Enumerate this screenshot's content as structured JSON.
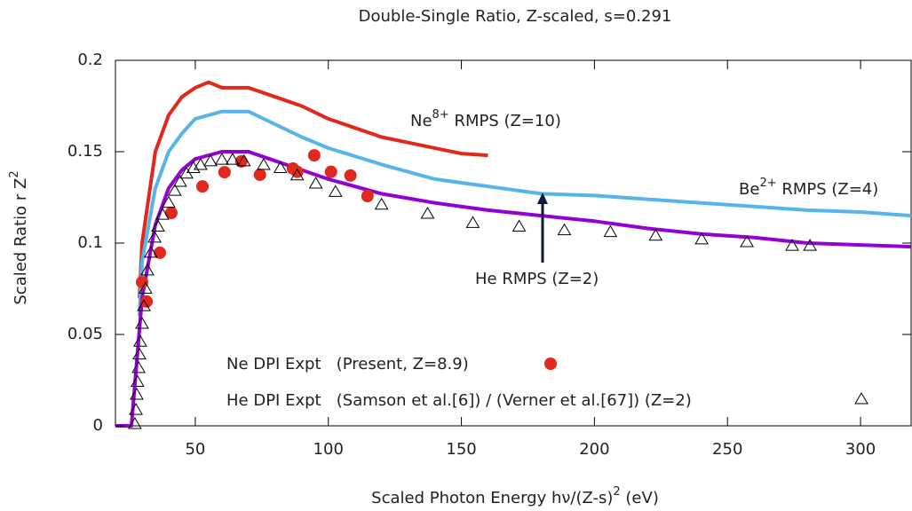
{
  "chart_data": {
    "type": "line",
    "title": "Double-Single Ratio, Z-scaled, s=0.291",
    "xlabel": {
      "text": "Scaled Photon Energy hν/(Z-s)",
      "sup": "2",
      "rest": " (eV)"
    },
    "ylabel": {
      "text": "Scaled Ratio  r Z",
      "sup": "2"
    },
    "xlim": [
      20,
      319
    ],
    "ylim": [
      0,
      0.2
    ],
    "xticks": [
      50,
      100,
      150,
      200,
      250,
      300
    ],
    "yticks": [
      0,
      0.05,
      0.1,
      0.15,
      0.2
    ],
    "series": [
      {
        "name": {
          "text": "Ne",
          "sup": "8+",
          "rest": " RMPS (Z=10)"
        },
        "style": "line",
        "color": "#e0281c",
        "x": [
          29,
          30,
          35,
          40,
          45,
          50,
          55,
          60,
          70,
          80,
          90,
          100,
          110,
          120,
          130,
          140,
          150,
          160
        ],
        "values": [
          0.07,
          0.1,
          0.15,
          0.17,
          0.18,
          0.185,
          0.188,
          0.185,
          0.185,
          0.18,
          0.175,
          0.168,
          0.163,
          0.158,
          0.155,
          0.152,
          0.149,
          0.148
        ]
      },
      {
        "name": {
          "text": "Be",
          "sup": "2+",
          "rest": " RMPS (Z=4)"
        },
        "style": "line",
        "color": "#56b4e9",
        "x": [
          29,
          30,
          35,
          40,
          45,
          50,
          60,
          70,
          80,
          90,
          100,
          120,
          140,
          160,
          180,
          200,
          220,
          240,
          260,
          280,
          300,
          319
        ],
        "values": [
          0.06,
          0.09,
          0.13,
          0.15,
          0.16,
          0.168,
          0.172,
          0.172,
          0.165,
          0.158,
          0.152,
          0.143,
          0.135,
          0.131,
          0.127,
          0.126,
          0.124,
          0.122,
          0.12,
          0.118,
          0.117,
          0.115
        ]
      },
      {
        "name": {
          "text": "He RMPS (Z=2)"
        },
        "style": "line",
        "color": "#9400d3",
        "x": [
          20,
          26,
          30,
          35,
          40,
          45,
          50,
          60,
          70,
          80,
          90,
          100,
          120,
          140,
          160,
          180,
          200,
          220,
          240,
          260,
          280,
          300,
          319
        ],
        "values": [
          0,
          0,
          0.07,
          0.11,
          0.13,
          0.14,
          0.146,
          0.15,
          0.15,
          0.145,
          0.14,
          0.135,
          0.127,
          0.122,
          0.118,
          0.115,
          0.112,
          0.108,
          0.105,
          0.103,
          0.1,
          0.099,
          0.098
        ]
      },
      {
        "name": "Ne DPI Expt   (Present, Z=8.9)",
        "style": "points",
        "marker": "circle",
        "color": "#e0281c",
        "x": [
          30,
          31.7,
          36.7,
          41,
          52.7,
          61,
          67.3,
          74.3,
          86.7,
          88.3,
          94.7,
          101,
          108.3,
          114.7
        ],
        "values": [
          0.0786,
          0.068,
          0.0947,
          0.1165,
          0.131,
          0.1388,
          0.1447,
          0.1374,
          0.1408,
          0.139,
          0.148,
          0.139,
          0.137,
          0.1257
        ]
      },
      {
        "name": "He DPI Expt   (Samson et al.[6]) / (Verner et al.[67]) (Z=2)",
        "style": "points",
        "marker": "triangle",
        "color": "#000000",
        "x": [
          27.3,
          27.7,
          28,
          28.3,
          28.7,
          29,
          29.3,
          30,
          30.7,
          31.3,
          32,
          33.3,
          34.7,
          36,
          37.7,
          40,
          42.3,
          44.3,
          46.7,
          49.3,
          52,
          55.7,
          60,
          64,
          68.3,
          75.7,
          82,
          88.3,
          95.3,
          102.7,
          120,
          137.3,
          154.3,
          171.7,
          188.7,
          206,
          223,
          240.3,
          257.3,
          274.3,
          281
        ],
        "values": [
          0.001,
          0.0087,
          0.017,
          0.024,
          0.0316,
          0.039,
          0.046,
          0.0558,
          0.0655,
          0.075,
          0.085,
          0.0947,
          0.103,
          0.109,
          0.1155,
          0.122,
          0.1286,
          0.1335,
          0.138,
          0.141,
          0.1427,
          0.1447,
          0.1456,
          0.1456,
          0.1447,
          0.1427,
          0.141,
          0.137,
          0.1325,
          0.128,
          0.121,
          0.116,
          0.111,
          0.109,
          0.107,
          0.106,
          0.104,
          0.102,
          0.1005,
          0.0985,
          0.0985
        ]
      }
    ]
  }
}
